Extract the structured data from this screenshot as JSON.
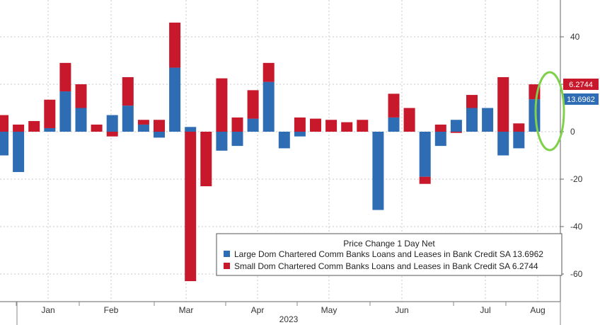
{
  "colors": {
    "large": "#2e6db4",
    "small": "#c8182b",
    "grid": "#c9c9c9",
    "axis_text": "#333333",
    "highlight": "#7fd14a",
    "background": "#ffffff"
  },
  "chart_data": {
    "type": "bar",
    "stacked": true,
    "legend": {
      "title": "Price Change 1 Day Net",
      "placement": "bottom-right"
    },
    "x_axis": {
      "month_labels": [
        "Jan",
        "Feb",
        "Mar",
        "Apr",
        "May",
        "Jun",
        "Jul",
        "Aug"
      ],
      "year_label": "2023"
    },
    "y_axis": {
      "side": "right",
      "ylim": [
        -65,
        55
      ],
      "ticks": [
        40,
        20,
        0,
        -20,
        -40,
        -60
      ],
      "tick_labels": [
        "40",
        "20",
        "0",
        "-20",
        "-40",
        "-60"
      ]
    },
    "grid": true,
    "last_values": {
      "small_label": "6.2744",
      "large_label": "13.6962"
    },
    "highlight_last_bar": true,
    "series": [
      {
        "name": "Large Dom Chartered Comm Banks Loans and Leases in Bank Credit SA 13.6962",
        "key": "large",
        "values": [
          -10,
          -17,
          0,
          1.5,
          17,
          10,
          0,
          7,
          11,
          3,
          -2.5,
          27,
          2,
          0,
          -8,
          -6,
          5.5,
          21,
          -7,
          -2,
          0,
          0,
          0,
          0,
          -33,
          6,
          0,
          -19,
          -6,
          5,
          10,
          10,
          -10,
          -7,
          13.6962
        ]
      },
      {
        "name": "Small Dom Chartered Comm Banks Loans and Leases in Bank Credit SA 6.2744",
        "key": "small",
        "values": [
          7,
          3,
          4.5,
          12,
          12,
          10,
          3,
          -2,
          12,
          2,
          5,
          19,
          -63,
          -23,
          22.5,
          6,
          12,
          8,
          0,
          6,
          5.5,
          5,
          4,
          5,
          0,
          10,
          10,
          -3,
          3,
          -0.5,
          5.5,
          0,
          23,
          3.5,
          6.2744
        ]
      }
    ]
  }
}
